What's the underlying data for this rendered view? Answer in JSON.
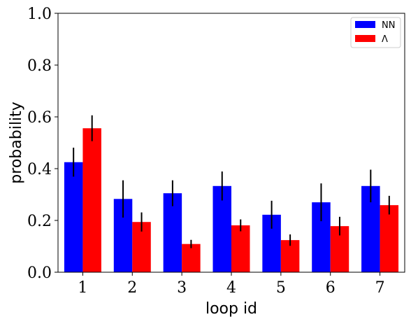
{
  "chart_data": {
    "type": "bar",
    "title": "",
    "xlabel": "loop id",
    "ylabel": "probability",
    "categories": [
      "1",
      "2",
      "3",
      "4",
      "5",
      "6",
      "7"
    ],
    "ylim": [
      0,
      1.0
    ],
    "yticks": [
      "0.0",
      "0.2",
      "0.4",
      "0.6",
      "0.8",
      "1.0"
    ],
    "grid": false,
    "legend_position": "top-right",
    "series": [
      {
        "name": "NN",
        "color": "#0000ff",
        "values": [
          0.425,
          0.283,
          0.305,
          0.333,
          0.222,
          0.27,
          0.333
        ],
        "errors": [
          0.056,
          0.072,
          0.05,
          0.056,
          0.054,
          0.073,
          0.063
        ]
      },
      {
        "name": "Λ",
        "color": "#ff0000",
        "values": [
          0.556,
          0.194,
          0.109,
          0.181,
          0.124,
          0.178,
          0.259
        ],
        "errors": [
          0.05,
          0.037,
          0.016,
          0.023,
          0.022,
          0.036,
          0.036
        ]
      }
    ]
  }
}
